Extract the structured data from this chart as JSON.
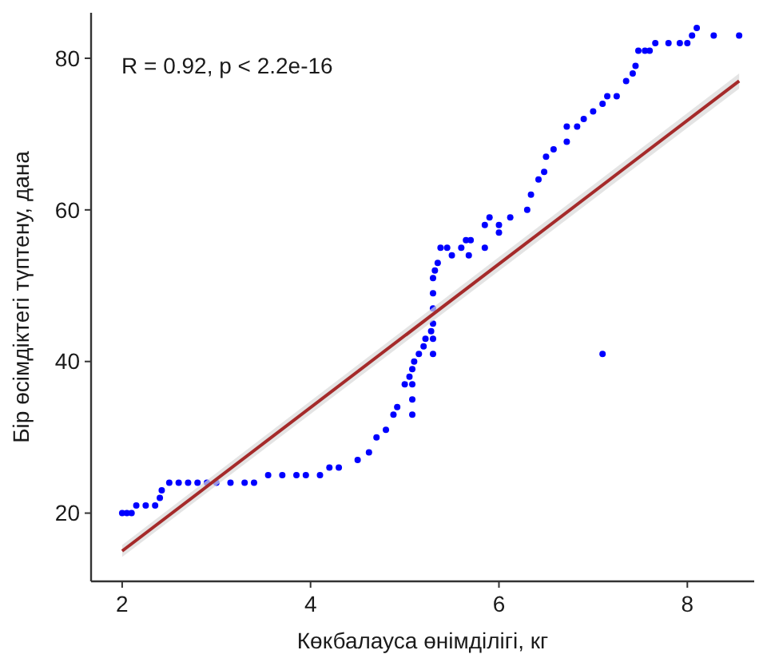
{
  "chart_data": {
    "type": "scatter",
    "xlabel": "Көкбалауса өнімділігі, кг",
    "ylabel": "Бір өсімдіктегі түптену, дана",
    "annotations": [
      "R = 0.92, p < 2.2e-16"
    ],
    "xlim": [
      1.67,
      8.71
    ],
    "ylim": [
      11,
      86
    ],
    "xticks": [
      2,
      4,
      6,
      8
    ],
    "yticks": [
      20,
      40,
      60,
      80
    ],
    "grid": false,
    "series": [
      {
        "color": "#0000ff",
        "marker": "circle",
        "x": [
          2.0,
          2.05,
          2.1,
          2.15,
          2.25,
          2.35,
          2.4,
          2.42,
          2.5,
          2.6,
          2.7,
          2.8,
          2.9,
          3.0,
          3.15,
          3.3,
          3.4,
          3.55,
          3.7,
          3.85,
          3.95,
          4.1,
          4.2,
          4.3,
          4.5,
          4.62,
          4.7,
          4.8,
          4.88,
          4.92,
          5.0,
          5.05,
          5.08,
          5.08,
          5.08,
          5.08,
          5.1,
          5.15,
          5.2,
          5.22,
          5.28,
          5.3,
          5.3,
          5.3,
          5.3,
          5.3,
          5.3,
          5.32,
          5.35,
          5.38,
          5.45,
          5.5,
          5.6,
          5.65,
          5.7,
          5.68,
          5.85,
          5.85,
          5.9,
          6.0,
          6.0,
          6.12,
          6.3,
          6.34,
          6.42,
          6.48,
          6.5,
          6.58,
          6.72,
          6.72,
          6.83,
          6.9,
          7.0,
          7.1,
          7.15,
          7.25,
          7.35,
          7.42,
          7.45,
          7.48,
          7.55,
          7.6,
          7.66,
          7.8,
          7.92,
          8.0,
          8.05,
          8.1,
          8.28,
          8.55,
          7.1
        ],
        "values": [
          20,
          20,
          20,
          21,
          21,
          21,
          22,
          23,
          24,
          24,
          24,
          24,
          24,
          24,
          24,
          24,
          24,
          25,
          25,
          25,
          25,
          25,
          26,
          26,
          27,
          28,
          30,
          31,
          33,
          34,
          37,
          38,
          33,
          35,
          37,
          39,
          40,
          41,
          42,
          43,
          44,
          41,
          43,
          45,
          47,
          49,
          51,
          52,
          53,
          55,
          55,
          54,
          55,
          56,
          56,
          54,
          55,
          58,
          59,
          58,
          57,
          59,
          60,
          62,
          64,
          65,
          67,
          68,
          69,
          71,
          71,
          72,
          73,
          74,
          75,
          75,
          77,
          78,
          79,
          81,
          81,
          81,
          82,
          82,
          82,
          82,
          83,
          84,
          83,
          83,
          41
        ]
      },
      {
        "type": "line",
        "color": "#a52a2a",
        "line_style": "solid",
        "x": [
          2,
          8.55
        ],
        "values": [
          15,
          77
        ],
        "lower": [
          14.2,
          76
        ],
        "upper": [
          15.8,
          78
        ]
      }
    ]
  }
}
